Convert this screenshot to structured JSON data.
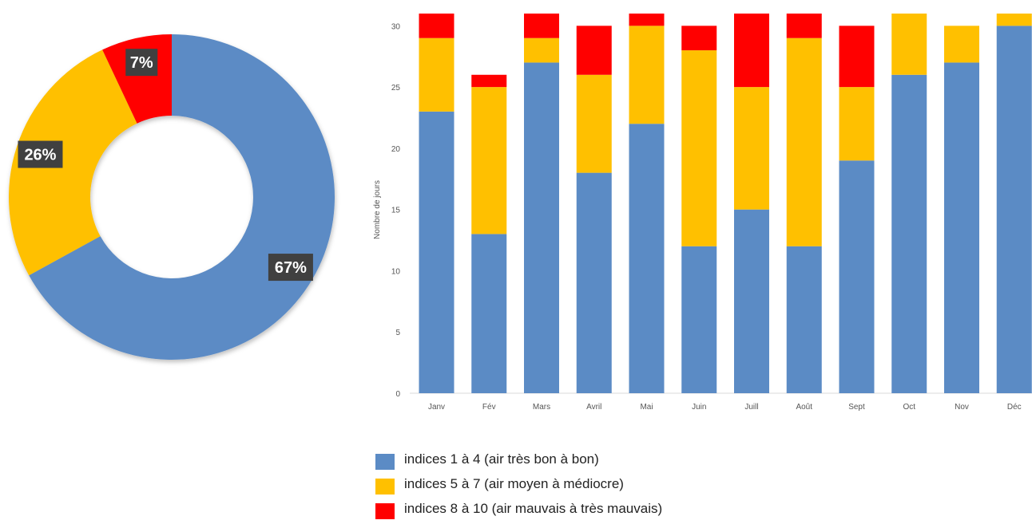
{
  "colors": {
    "good": "#5b8bc5",
    "medium": "#ffc000",
    "bad": "#ff0000",
    "label_box": "#404040"
  },
  "chart_data": [
    {
      "type": "pie",
      "variant": "donut",
      "slices": [
        {
          "label": "indices 1 à 4 (air très bon à bon)",
          "value": 67,
          "display": "67%",
          "color": "#5b8bc5"
        },
        {
          "label": "indices 5 à 7 (air moyen à médiocre)",
          "value": 26,
          "display": "26%",
          "color": "#ffc000"
        },
        {
          "label": "indices 8 à 10 (air mauvais à très mauvais)",
          "value": 7,
          "display": "7%",
          "color": "#ff0000"
        }
      ]
    },
    {
      "type": "bar",
      "stacked": true,
      "categories": [
        "Janv",
        "Fév",
        "Mars",
        "Avril",
        "Mai",
        "Juin",
        "Juill",
        "Août",
        "Sept",
        "Oct",
        "Nov",
        "Déc"
      ],
      "series": [
        {
          "name": "indices 1 à 4 (air très bon à bon)",
          "color": "#5b8bc5",
          "values": [
            23,
            13,
            27,
            18,
            22,
            12,
            15,
            12,
            19,
            26,
            27,
            30
          ]
        },
        {
          "name": "indices 5 à 7 (air moyen à médiocre)",
          "color": "#ffc000",
          "values": [
            6,
            12,
            2,
            8,
            8,
            16,
            10,
            17,
            6,
            5,
            3,
            1
          ]
        },
        {
          "name": "indices 8 à 10 (air mauvais à très mauvais)",
          "color": "#ff0000",
          "values": [
            2,
            1,
            2,
            4,
            1,
            2,
            6,
            2,
            5,
            0,
            0,
            0
          ]
        }
      ],
      "ylabel": "Nombre de jours",
      "yticks": [
        0,
        5,
        10,
        15,
        20,
        25,
        30
      ],
      "ylim": [
        0,
        31
      ],
      "grid": false
    }
  ],
  "legend": {
    "placement": "bottom",
    "items": [
      {
        "label": "indices 1 à 4 (air très bon à bon)",
        "color": "#5b8bc5"
      },
      {
        "label": "indices 5 à 7 (air moyen à médiocre)",
        "color": "#ffc000"
      },
      {
        "label": "indices 8 à 10 (air mauvais à très mauvais)",
        "color": "#ff0000"
      }
    ]
  }
}
